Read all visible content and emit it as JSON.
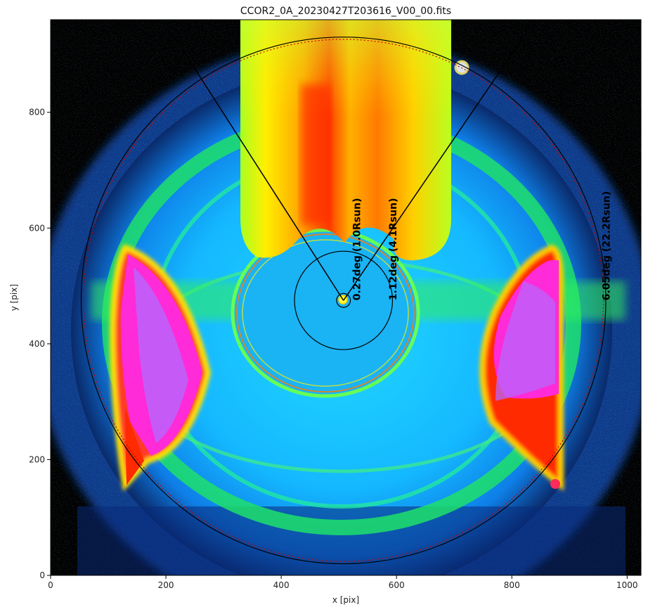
{
  "title": "CCOR2_0A_20230427T203616_V00_00.fits",
  "xlabel": "x [pix]",
  "ylabel": "y [pix]",
  "chart_data": {
    "type": "heatmap",
    "title": "CCOR2_0A_20230427T203616_V00_00.fits",
    "xlabel": "x [pix]",
    "ylabel": "y [pix]",
    "xlim": [
      0,
      1024
    ],
    "ylim": [
      0,
      960
    ],
    "xticks": [
      0,
      200,
      400,
      600,
      800,
      1000
    ],
    "yticks": [
      0,
      200,
      400,
      600,
      800
    ],
    "xtick_labels": [
      "0",
      "200",
      "400",
      "600",
      "800",
      "1000"
    ],
    "ytick_labels": [
      "0",
      "200",
      "400",
      "600",
      "800"
    ],
    "colormap": "nipy_spectral",
    "center": [
      508,
      475
    ],
    "circles": [
      {
        "radius_pix": 12,
        "color": "#000000",
        "style": "solid"
      },
      {
        "radius_pix": 85,
        "color": "#000000",
        "style": "solid"
      },
      {
        "radius_pix": 455,
        "color": "#000000",
        "style": "solid"
      },
      {
        "radius_pix": 451,
        "color": "#cc0000",
        "style": "dotted"
      }
    ],
    "radial_lines": [
      {
        "from": [
          508,
          475
        ],
        "to": [
          215,
          930
        ]
      },
      {
        "from": [
          508,
          475
        ],
        "to": [
          820,
          930
        ]
      }
    ],
    "annotations": [
      {
        "text": "0.27deg (1.0Rsun)",
        "x": 537,
        "y": 475
      },
      {
        "text": "1.12deg (4.1Rsun)",
        "x": 600,
        "y": 475
      },
      {
        "text": "6.05deg (22.2Rsun)",
        "x": 970,
        "y": 475
      }
    ]
  }
}
